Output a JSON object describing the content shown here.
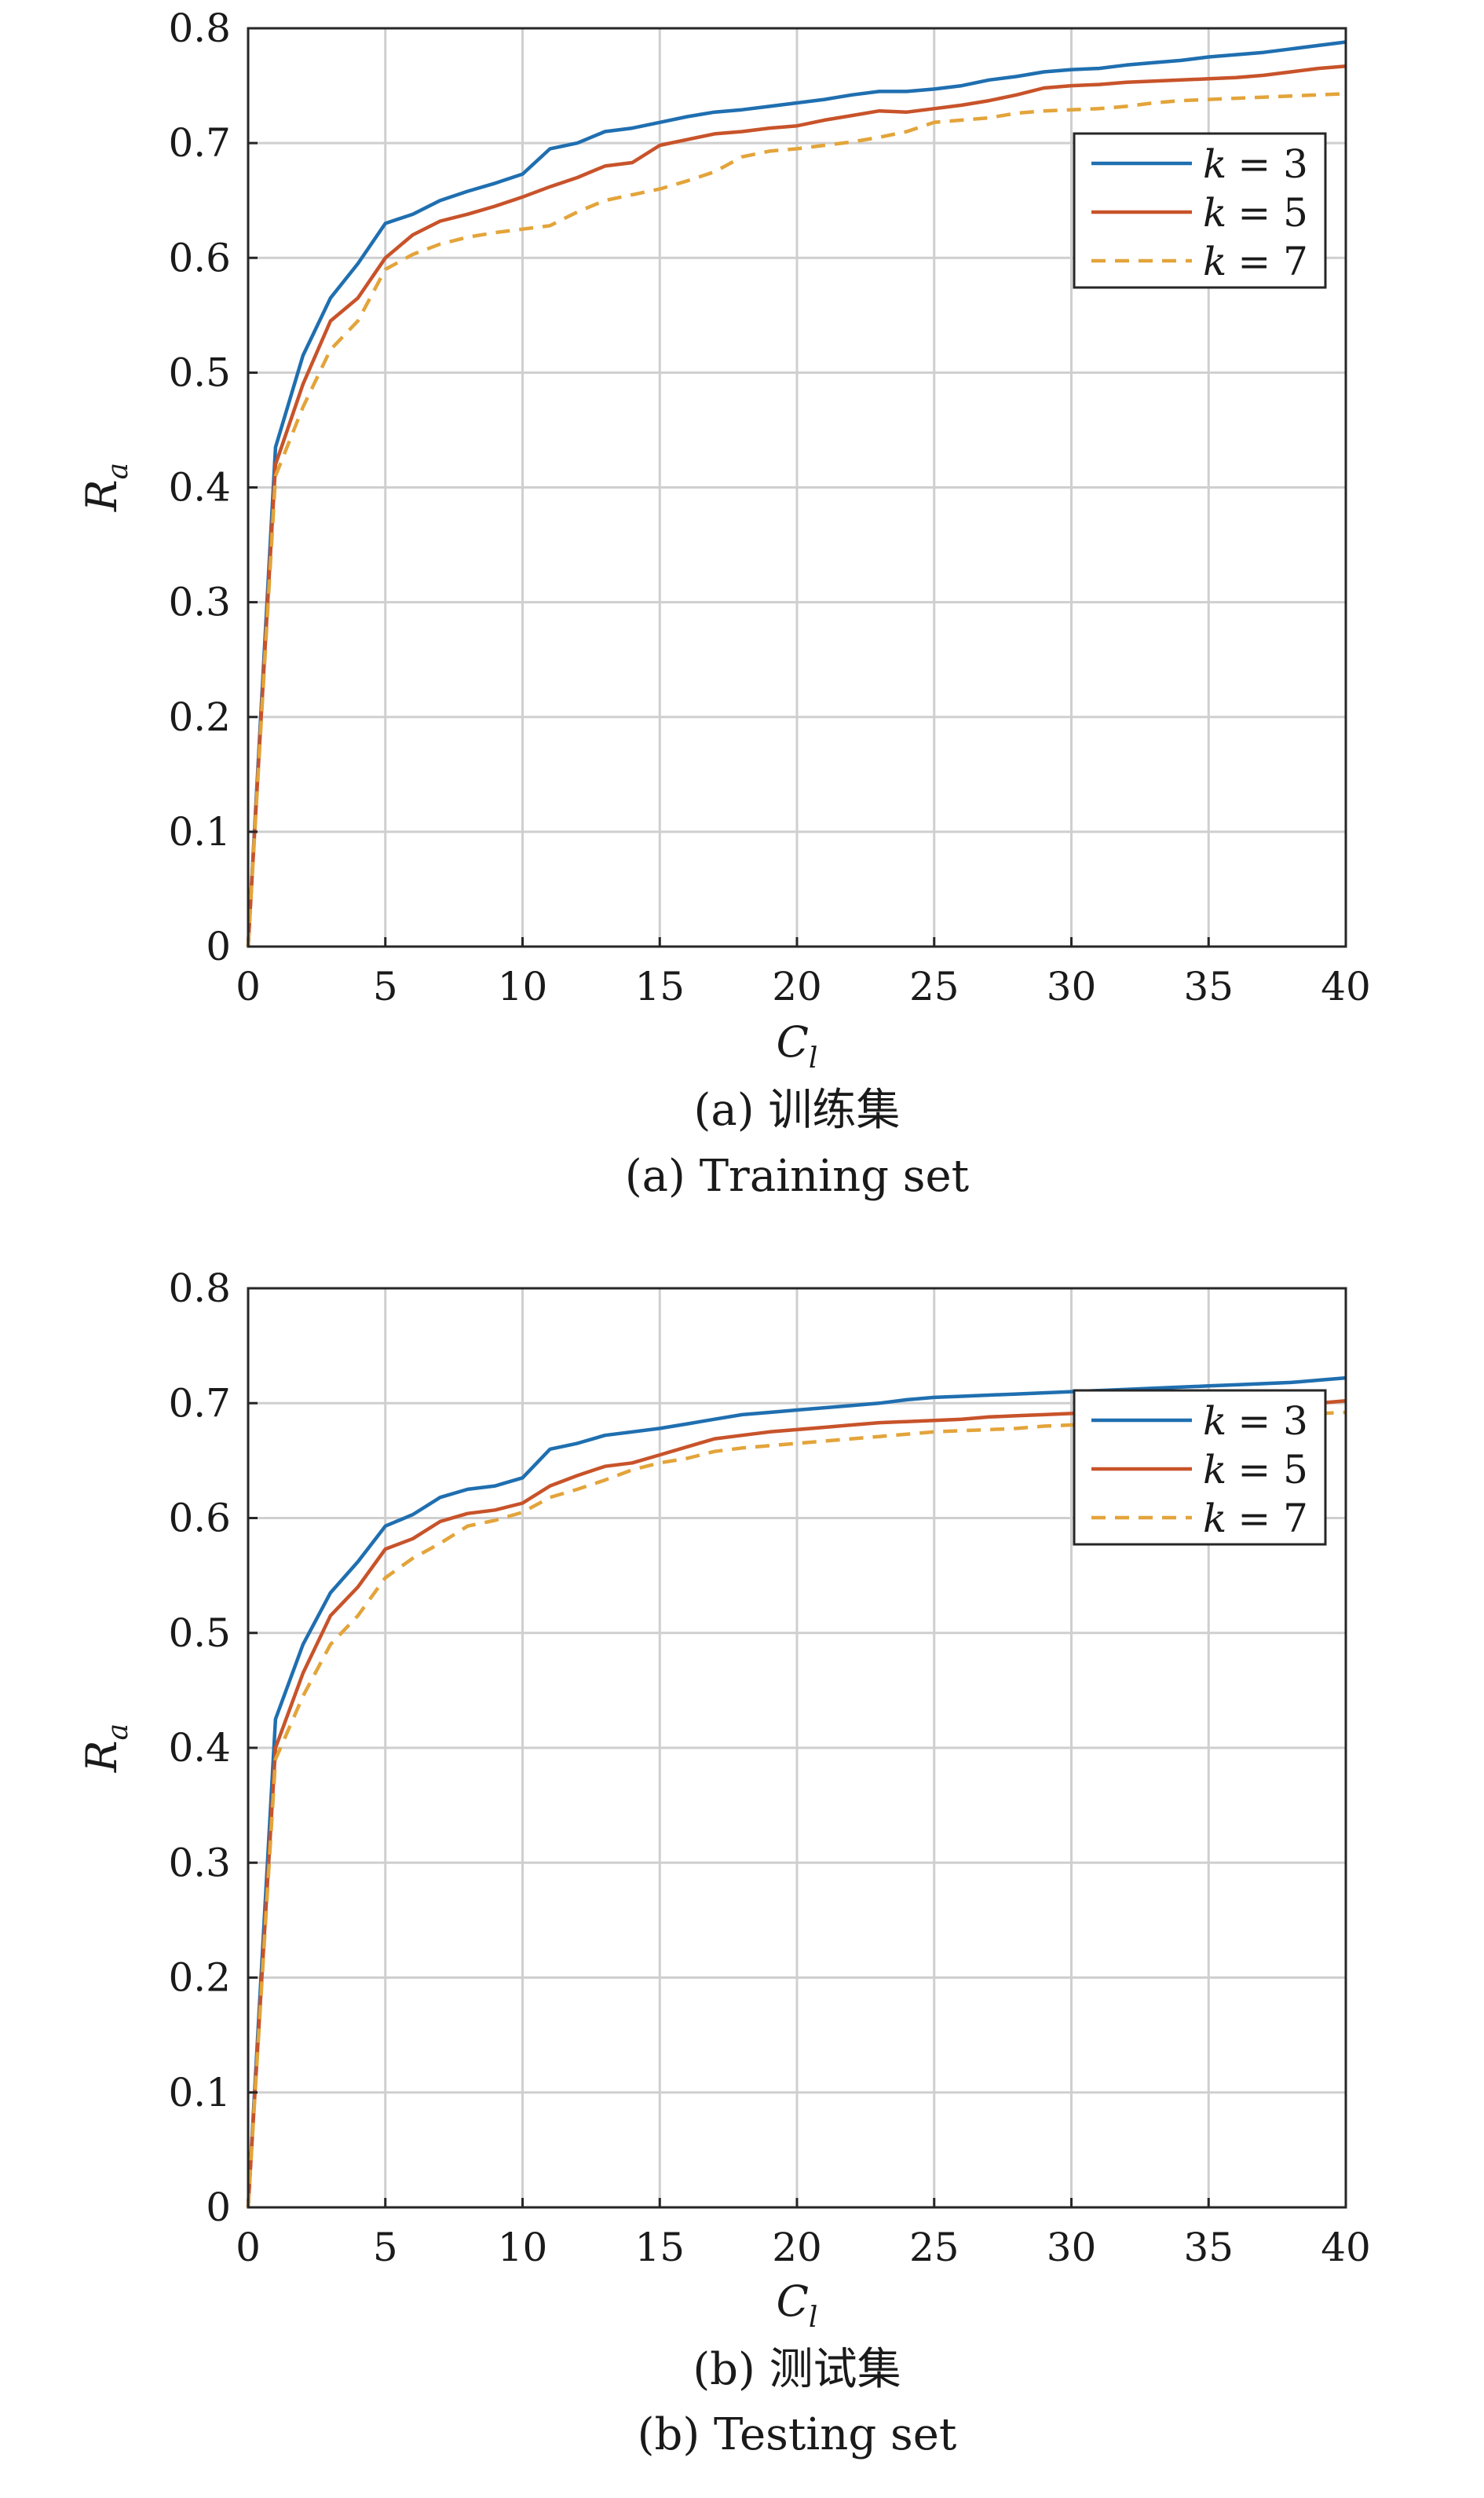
{
  "chart_data": [
    {
      "type": "line",
      "caption_cn": "(a) 训练集",
      "caption_en": "(a) Training set",
      "xlabel": "C",
      "xlabel_sub": "l",
      "ylabel": "R",
      "ylabel_sub": "a",
      "xlim": [
        0,
        40
      ],
      "ylim": [
        0,
        0.8
      ],
      "xticks": [
        "0",
        "5",
        "10",
        "15",
        "20",
        "25",
        "30",
        "35",
        "40"
      ],
      "yticks": [
        "0",
        "0.1",
        "0.2",
        "0.3",
        "0.4",
        "0.5",
        "0.6",
        "0.7",
        "0.8"
      ],
      "grid": true,
      "legend_position": "top-right",
      "x": [
        0,
        1,
        2,
        3,
        4,
        5,
        6,
        7,
        8,
        9,
        10,
        11,
        12,
        13,
        14,
        15,
        16,
        17,
        18,
        19,
        20,
        21,
        22,
        23,
        24,
        25,
        26,
        27,
        28,
        29,
        30,
        31,
        32,
        33,
        34,
        35,
        36,
        37,
        38,
        39,
        40
      ],
      "series": [
        {
          "name": "k = 3",
          "label_k": "k",
          "label_rest": "= 3",
          "color": "#1f6fb0",
          "dash": false,
          "values": [
            0,
            0.435,
            0.515,
            0.565,
            0.595,
            0.63,
            0.638,
            0.65,
            0.658,
            0.665,
            0.673,
            0.695,
            0.7,
            0.71,
            0.713,
            0.718,
            0.723,
            0.727,
            0.729,
            0.732,
            0.735,
            0.738,
            0.742,
            0.745,
            0.745,
            0.747,
            0.75,
            0.755,
            0.758,
            0.762,
            0.764,
            0.765,
            0.768,
            0.77,
            0.772,
            0.775,
            0.777,
            0.779,
            0.782,
            0.785,
            0.788
          ]
        },
        {
          "name": "k = 5",
          "label_k": "k",
          "label_rest": "= 5",
          "color": "#c8532a",
          "dash": false,
          "values": [
            0,
            0.42,
            0.49,
            0.545,
            0.565,
            0.6,
            0.62,
            0.632,
            0.638,
            0.645,
            0.653,
            0.662,
            0.67,
            0.68,
            0.683,
            0.698,
            0.703,
            0.708,
            0.71,
            0.713,
            0.715,
            0.72,
            0.724,
            0.728,
            0.727,
            0.73,
            0.733,
            0.737,
            0.742,
            0.748,
            0.75,
            0.751,
            0.753,
            0.754,
            0.755,
            0.756,
            0.757,
            0.759,
            0.762,
            0.765,
            0.767
          ]
        },
        {
          "name": "k = 7",
          "label_k": "k",
          "label_rest": "= 7",
          "color": "#e3a43a",
          "dash": true,
          "values": [
            0,
            0.41,
            0.47,
            0.52,
            0.545,
            0.59,
            0.603,
            0.612,
            0.618,
            0.622,
            0.625,
            0.628,
            0.64,
            0.65,
            0.655,
            0.66,
            0.667,
            0.675,
            0.688,
            0.693,
            0.695,
            0.698,
            0.701,
            0.705,
            0.71,
            0.718,
            0.72,
            0.722,
            0.726,
            0.728,
            0.729,
            0.73,
            0.732,
            0.735,
            0.737,
            0.738,
            0.739,
            0.74,
            0.741,
            0.742,
            0.743
          ]
        }
      ]
    },
    {
      "type": "line",
      "caption_cn": "(b) 测试集",
      "caption_en": "(b) Testing set",
      "xlabel": "C",
      "xlabel_sub": "l",
      "ylabel": "R",
      "ylabel_sub": "a",
      "xlim": [
        0,
        40
      ],
      "ylim": [
        0,
        0.8
      ],
      "xticks": [
        "0",
        "5",
        "10",
        "15",
        "20",
        "25",
        "30",
        "35",
        "40"
      ],
      "yticks": [
        "0",
        "0.1",
        "0.2",
        "0.3",
        "0.4",
        "0.5",
        "0.6",
        "0.7",
        "0.8"
      ],
      "grid": true,
      "legend_position": "top-right",
      "x": [
        0,
        1,
        2,
        3,
        4,
        5,
        6,
        7,
        8,
        9,
        10,
        11,
        12,
        13,
        14,
        15,
        16,
        17,
        18,
        19,
        20,
        21,
        22,
        23,
        24,
        25,
        26,
        27,
        28,
        29,
        30,
        31,
        32,
        33,
        34,
        35,
        36,
        37,
        38,
        39,
        40
      ],
      "series": [
        {
          "name": "k = 3",
          "label_k": "k",
          "label_rest": "= 3",
          "color": "#1f6fb0",
          "dash": false,
          "values": [
            0,
            0.425,
            0.49,
            0.535,
            0.562,
            0.593,
            0.603,
            0.618,
            0.625,
            0.628,
            0.635,
            0.66,
            0.665,
            0.672,
            0.675,
            0.678,
            0.682,
            0.686,
            0.69,
            0.692,
            0.694,
            0.696,
            0.698,
            0.7,
            0.703,
            0.705,
            0.706,
            0.707,
            0.708,
            0.709,
            0.71,
            0.711,
            0.712,
            0.713,
            0.714,
            0.715,
            0.716,
            0.717,
            0.718,
            0.72,
            0.722
          ]
        },
        {
          "name": "k = 5",
          "label_k": "k",
          "label_rest": "= 5",
          "color": "#c8532a",
          "dash": false,
          "values": [
            0,
            0.4,
            0.465,
            0.515,
            0.54,
            0.573,
            0.582,
            0.597,
            0.604,
            0.607,
            0.613,
            0.628,
            0.637,
            0.645,
            0.648,
            0.655,
            0.662,
            0.669,
            0.672,
            0.675,
            0.677,
            0.679,
            0.681,
            0.683,
            0.684,
            0.685,
            0.686,
            0.688,
            0.689,
            0.69,
            0.691,
            0.692,
            0.693,
            0.694,
            0.695,
            0.696,
            0.697,
            0.698,
            0.699,
            0.7,
            0.702
          ]
        },
        {
          "name": "k = 7",
          "label_k": "k",
          "label_rest": "= 7",
          "color": "#e3a43a",
          "dash": true,
          "values": [
            0,
            0.39,
            0.445,
            0.49,
            0.515,
            0.548,
            0.565,
            0.578,
            0.593,
            0.598,
            0.605,
            0.618,
            0.625,
            0.633,
            0.642,
            0.648,
            0.652,
            0.658,
            0.661,
            0.663,
            0.665,
            0.667,
            0.669,
            0.671,
            0.673,
            0.675,
            0.676,
            0.677,
            0.678,
            0.68,
            0.681,
            0.682,
            0.683,
            0.684,
            0.686,
            0.687,
            0.688,
            0.689,
            0.69,
            0.691,
            0.692
          ]
        }
      ]
    }
  ]
}
